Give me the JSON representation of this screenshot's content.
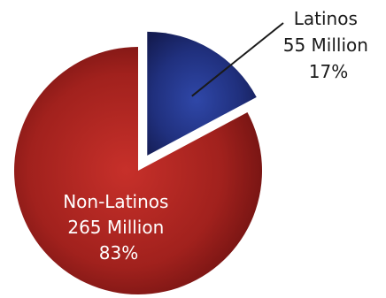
{
  "chart_data": {
    "type": "pie",
    "title": "",
    "slices": [
      {
        "name": "Latinos",
        "value": 55,
        "value_label": "55 Million",
        "percent": 17,
        "percent_label": "17%",
        "color": "#1f2f7a",
        "exploded": true
      },
      {
        "name": "Non-Latinos",
        "value": 265,
        "value_label": "265 Million",
        "percent": 83,
        "percent_label": "83%",
        "color": "#9b1d1a",
        "exploded": false
      }
    ],
    "legend": false
  }
}
